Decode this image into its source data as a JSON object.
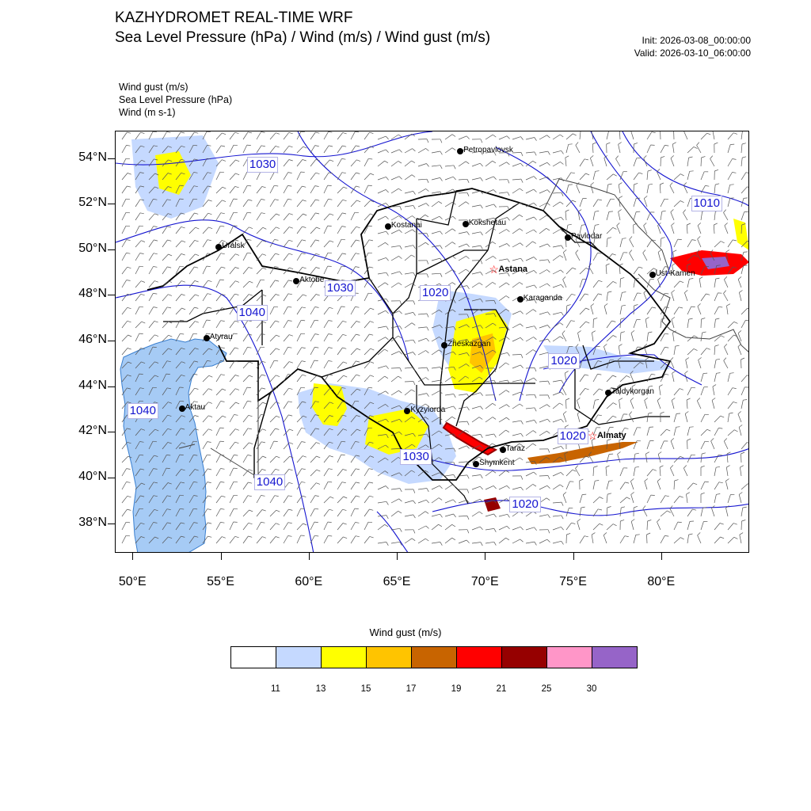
{
  "header": {
    "title": "KAZHYDROMET REAL-TIME WRF",
    "subtitle": "Sea Level Pressure  (hPa) / Wind  (m/s) / Wind gust  (m/s)",
    "init": "Init: 2026-03-08_00:00:00",
    "valid": "Valid: 2026-03-10_06:00:00"
  },
  "layers": [
    "Wind gust   (m/s)",
    "Sea Level Pressure   (hPa)",
    "Wind   (m s-1)"
  ],
  "map": {
    "extent": {
      "lon_min": 49.0,
      "lon_max": 85.0,
      "lat_min": 36.7,
      "lat_max": 55.2
    },
    "lat_ticks": [
      {
        "lat": 54,
        "label": "54°N"
      },
      {
        "lat": 52,
        "label": "52°N"
      },
      {
        "lat": 50,
        "label": "50°N"
      },
      {
        "lat": 48,
        "label": "48°N"
      },
      {
        "lat": 46,
        "label": "46°N"
      },
      {
        "lat": 44,
        "label": "44°N"
      },
      {
        "lat": 42,
        "label": "42°N"
      },
      {
        "lat": 40,
        "label": "40°N"
      },
      {
        "lat": 38,
        "label": "38°N"
      }
    ],
    "lon_ticks": [
      {
        "lon": 50,
        "label": "50°E"
      },
      {
        "lon": 55,
        "label": "55°E"
      },
      {
        "lon": 60,
        "label": "60°E"
      },
      {
        "lon": 65,
        "label": "65°E"
      },
      {
        "lon": 70,
        "label": "70°E"
      },
      {
        "lon": 75,
        "label": "75°E"
      },
      {
        "lon": 80,
        "label": "80°E"
      }
    ],
    "cities": [
      {
        "name": "Petropavlovsk",
        "lon": 68.6,
        "lat": 54.3,
        "capital": false
      },
      {
        "name": "Kostanai",
        "lon": 64.5,
        "lat": 51.0,
        "capital": false
      },
      {
        "name": "Kokshetau",
        "lon": 68.9,
        "lat": 51.1,
        "capital": false
      },
      {
        "name": "Pavlodar",
        "lon": 74.7,
        "lat": 50.5,
        "capital": false
      },
      {
        "name": "Uralsk",
        "lon": 54.9,
        "lat": 50.1,
        "capital": false
      },
      {
        "name": "Astana",
        "lon": 70.5,
        "lat": 49.1,
        "capital": true
      },
      {
        "name": "Aktobe",
        "lon": 59.3,
        "lat": 48.6,
        "capital": false
      },
      {
        "name": "Ust-Kamen",
        "lon": 79.5,
        "lat": 48.9,
        "capital": false
      },
      {
        "name": "Karaganda",
        "lon": 72.0,
        "lat": 47.8,
        "capital": false
      },
      {
        "name": "Atyrau",
        "lon": 54.2,
        "lat": 46.1,
        "capital": false
      },
      {
        "name": "Zheskazgan",
        "lon": 67.7,
        "lat": 45.8,
        "capital": false
      },
      {
        "name": "Taldykorgan",
        "lon": 77.0,
        "lat": 43.7,
        "capital": false
      },
      {
        "name": "Aktau",
        "lon": 52.8,
        "lat": 43.0,
        "capital": false
      },
      {
        "name": "Kyzylorda",
        "lon": 65.6,
        "lat": 42.9,
        "capital": false
      },
      {
        "name": "Almaty",
        "lon": 76.1,
        "lat": 41.8,
        "capital": true
      },
      {
        "name": "Taraz",
        "lon": 71.0,
        "lat": 41.2,
        "capital": false
      },
      {
        "name": "Shymkent",
        "lon": 69.5,
        "lat": 40.6,
        "capital": false
      }
    ],
    "isobar_labels": [
      {
        "text": "1030",
        "lon": 57.4,
        "lat": 53.7
      },
      {
        "text": "1010",
        "lon": 82.6,
        "lat": 52.0
      },
      {
        "text": "1030",
        "lon": 61.8,
        "lat": 48.3
      },
      {
        "text": "1020",
        "lon": 67.2,
        "lat": 48.1
      },
      {
        "text": "1040",
        "lon": 56.8,
        "lat": 47.2
      },
      {
        "text": "1020",
        "lon": 74.5,
        "lat": 45.1
      },
      {
        "text": "1040",
        "lon": 50.6,
        "lat": 42.9
      },
      {
        "text": "1020",
        "lon": 75.0,
        "lat": 41.8
      },
      {
        "text": "1030",
        "lon": 66.1,
        "lat": 40.9
      },
      {
        "text": "1040",
        "lon": 57.8,
        "lat": 39.8
      },
      {
        "text": "1020",
        "lon": 72.3,
        "lat": 38.8
      }
    ]
  },
  "colors": {
    "isobar": "#1515d0",
    "border": "#000000",
    "region": "#444444",
    "barb": "#555555",
    "capital_marker": "#ff0000"
  },
  "colorbar": {
    "title": "Wind gust (m/s)",
    "bins": [
      {
        "color": "#ffffff"
      },
      {
        "color": "#c5d9ff"
      },
      {
        "color": "#ffff00"
      },
      {
        "color": "#ffc400"
      },
      {
        "color": "#c86400"
      },
      {
        "color": "#ff0000"
      },
      {
        "color": "#960000"
      },
      {
        "color": "#ff96c8"
      },
      {
        "color": "#9664c8"
      }
    ],
    "ticks": [
      "11",
      "13",
      "15",
      "17",
      "19",
      "21",
      "25",
      "30"
    ]
  }
}
